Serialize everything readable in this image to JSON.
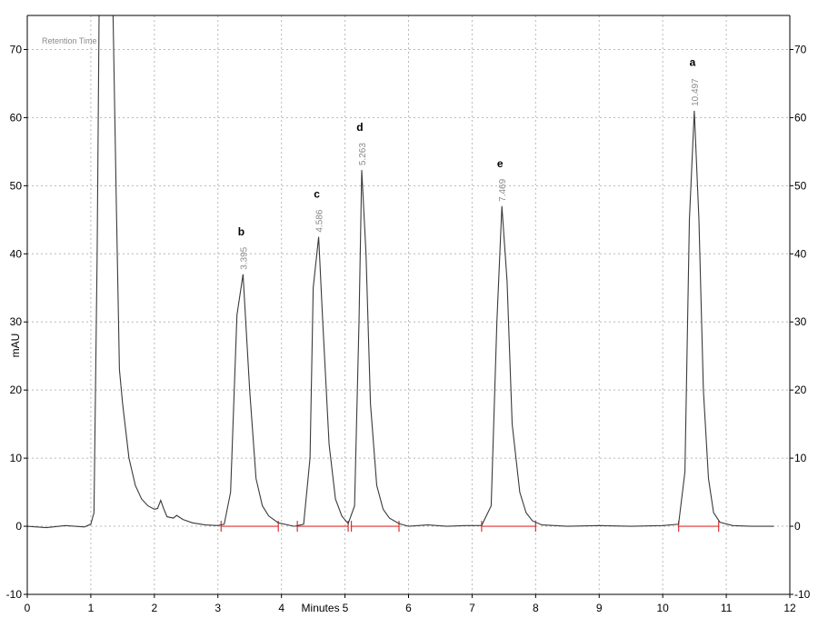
{
  "chart_data": {
    "type": "line",
    "xlabel": "Minutes",
    "ylabel": "mAU",
    "annotation": "Retention Time",
    "xlim": [
      0,
      12
    ],
    "ylim": [
      -10,
      75
    ],
    "x_ticks": [
      0,
      1,
      2,
      3,
      4,
      5,
      6,
      7,
      8,
      9,
      10,
      11,
      12
    ],
    "y_ticks": [
      -10,
      0,
      10,
      20,
      30,
      40,
      50,
      60,
      70
    ],
    "grid": true,
    "series": [
      {
        "color": "#3a3a3a",
        "points": [
          [
            0.0,
            0.0
          ],
          [
            0.3,
            -0.2
          ],
          [
            0.6,
            0.1
          ],
          [
            0.9,
            -0.1
          ],
          [
            1.0,
            0.3
          ],
          [
            1.05,
            2.0
          ],
          [
            1.1,
            40.0
          ],
          [
            1.13,
            78.0
          ],
          [
            1.35,
            78.0
          ],
          [
            1.4,
            48.0
          ],
          [
            1.45,
            23.0
          ],
          [
            1.5,
            18.0
          ],
          [
            1.6,
            10.0
          ],
          [
            1.7,
            6.0
          ],
          [
            1.8,
            4.0
          ],
          [
            1.9,
            3.0
          ],
          [
            2.0,
            2.5
          ],
          [
            2.05,
            2.6
          ],
          [
            2.1,
            3.8
          ],
          [
            2.15,
            2.5
          ],
          [
            2.2,
            1.4
          ],
          [
            2.3,
            1.2
          ],
          [
            2.35,
            1.6
          ],
          [
            2.45,
            1.0
          ],
          [
            2.6,
            0.5
          ],
          [
            2.8,
            0.2
          ],
          [
            3.0,
            0.1
          ],
          [
            3.1,
            0.3
          ],
          [
            3.2,
            5.0
          ],
          [
            3.3,
            31.0
          ],
          [
            3.395,
            37.0
          ],
          [
            3.5,
            20.0
          ],
          [
            3.6,
            7.0
          ],
          [
            3.7,
            3.0
          ],
          [
            3.8,
            1.5
          ],
          [
            3.95,
            0.5
          ],
          [
            4.2,
            0.0
          ],
          [
            4.35,
            0.3
          ],
          [
            4.45,
            10.0
          ],
          [
            4.5,
            35.0
          ],
          [
            4.586,
            42.5
          ],
          [
            4.65,
            30.0
          ],
          [
            4.75,
            12.0
          ],
          [
            4.85,
            4.0
          ],
          [
            4.95,
            1.5
          ],
          [
            5.05,
            0.4
          ],
          [
            5.15,
            3.0
          ],
          [
            5.22,
            30.0
          ],
          [
            5.263,
            52.3
          ],
          [
            5.33,
            40.0
          ],
          [
            5.4,
            18.0
          ],
          [
            5.5,
            6.0
          ],
          [
            5.6,
            2.5
          ],
          [
            5.7,
            1.2
          ],
          [
            5.85,
            0.4
          ],
          [
            6.0,
            0.0
          ],
          [
            6.3,
            0.2
          ],
          [
            6.6,
            0.0
          ],
          [
            6.9,
            0.1
          ],
          [
            7.15,
            0.1
          ],
          [
            7.3,
            3.0
          ],
          [
            7.39,
            30.0
          ],
          [
            7.469,
            47.0
          ],
          [
            7.55,
            36.0
          ],
          [
            7.63,
            15.0
          ],
          [
            7.75,
            5.0
          ],
          [
            7.85,
            2.0
          ],
          [
            7.95,
            0.8
          ],
          [
            8.1,
            0.2
          ],
          [
            8.5,
            0.0
          ],
          [
            9.0,
            0.1
          ],
          [
            9.5,
            0.0
          ],
          [
            10.0,
            0.1
          ],
          [
            10.25,
            0.3
          ],
          [
            10.35,
            8.0
          ],
          [
            10.42,
            45.0
          ],
          [
            10.497,
            61.0
          ],
          [
            10.57,
            45.0
          ],
          [
            10.64,
            20.0
          ],
          [
            10.72,
            7.0
          ],
          [
            10.8,
            2.0
          ],
          [
            10.9,
            0.6
          ],
          [
            11.1,
            0.1
          ],
          [
            11.4,
            0.0
          ],
          [
            11.75,
            0.0
          ]
        ]
      }
    ],
    "peaks": [
      {
        "letter": "b",
        "rt": "3.395",
        "x": 3.395,
        "y": 37.0
      },
      {
        "letter": "c",
        "rt": "4.586",
        "x": 4.586,
        "y": 42.5
      },
      {
        "letter": "d",
        "rt": "5.263",
        "x": 5.263,
        "y": 52.3
      },
      {
        "letter": "e",
        "rt": "7.469",
        "x": 7.469,
        "y": 47.0
      },
      {
        "letter": "a",
        "rt": "10.497",
        "x": 10.497,
        "y": 61.0
      }
    ],
    "integration_baselines": [
      [
        3.05,
        3.95
      ],
      [
        4.25,
        5.05
      ],
      [
        5.1,
        5.85
      ],
      [
        7.15,
        8.0
      ],
      [
        10.25,
        10.88
      ]
    ],
    "colors": {
      "trace": "#3a3a3a",
      "baseline": "#e03030",
      "grid": "#b8b8b8",
      "rt_label": "#8a8a8a"
    }
  }
}
